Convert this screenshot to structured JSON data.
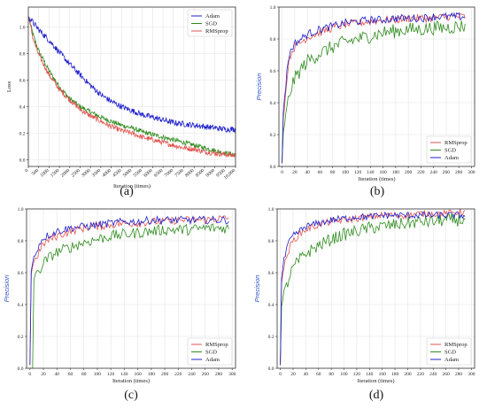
{
  "colors": {
    "Adam": "#1f1fcc",
    "SGD": "#2e8b1e",
    "RMSprop": "#e0534d"
  },
  "chart_data": [
    {
      "panel": "(a)",
      "type": "line",
      "xlabel": "Iteration (times)",
      "ylabel": "Loss",
      "xlim": [
        0,
        10000
      ],
      "ylim": [
        -0.05,
        1.15
      ],
      "xticks": [
        0,
        500,
        1000,
        1500,
        2000,
        2500,
        3000,
        3500,
        4000,
        4500,
        5000,
        5500,
        6000,
        6500,
        7000,
        7500,
        8000,
        8500,
        9000,
        9500,
        10000
      ],
      "xtick_labels": [
        "0",
        "500",
        "1000",
        "1500",
        "2000",
        "2500",
        "3000",
        "3500",
        "4000",
        "4500",
        "5000",
        "5500",
        "6000",
        "6500",
        "7000",
        "7500",
        "8000",
        "8500",
        "9000",
        "9500",
        "10,000"
      ],
      "yticks": [
        0,
        0.2,
        0.4,
        0.6,
        0.8,
        1.0
      ],
      "ytick_labels": [
        "0.0",
        "0.2",
        "0.4",
        "0.6",
        "0.8",
        "1.0"
      ],
      "grid": true,
      "legend_position": "top-right",
      "legend": [
        "Adam",
        "SGD",
        "RMSprop"
      ],
      "series": [
        {
          "name": "SGD",
          "noise": 0.018,
          "x": [
            0,
            250,
            500,
            1000,
            1500,
            2000,
            2500,
            3000,
            3500,
            4000,
            4500,
            5000,
            5500,
            6000,
            6500,
            7000,
            7500,
            8000,
            8500,
            9000,
            9500,
            10000
          ],
          "values": [
            1.08,
            0.93,
            0.82,
            0.67,
            0.55,
            0.46,
            0.4,
            0.36,
            0.32,
            0.29,
            0.26,
            0.24,
            0.21,
            0.19,
            0.17,
            0.15,
            0.13,
            0.11,
            0.09,
            0.07,
            0.05,
            0.04
          ]
        },
        {
          "name": "RMSprop",
          "noise": 0.02,
          "x": [
            0,
            250,
            500,
            1000,
            1500,
            2000,
            2500,
            3000,
            3500,
            4000,
            4500,
            5000,
            5500,
            6000,
            6500,
            7000,
            7500,
            8000,
            8500,
            9000,
            9500,
            10000
          ],
          "values": [
            1.08,
            0.9,
            0.79,
            0.64,
            0.53,
            0.45,
            0.38,
            0.33,
            0.29,
            0.25,
            0.22,
            0.2,
            0.17,
            0.15,
            0.13,
            0.11,
            0.09,
            0.08,
            0.06,
            0.05,
            0.04,
            0.03
          ]
        },
        {
          "name": "Adam",
          "noise": 0.022,
          "x": [
            0,
            250,
            500,
            1000,
            1500,
            2000,
            2500,
            3000,
            3500,
            4000,
            4500,
            5000,
            5500,
            6000,
            6500,
            7000,
            7500,
            8000,
            8500,
            9000,
            9500,
            10000
          ],
          "values": [
            1.08,
            1.03,
            0.98,
            0.9,
            0.81,
            0.72,
            0.64,
            0.56,
            0.49,
            0.44,
            0.4,
            0.37,
            0.34,
            0.32,
            0.3,
            0.28,
            0.27,
            0.26,
            0.25,
            0.24,
            0.23,
            0.23
          ]
        }
      ]
    },
    {
      "panel": "(b)",
      "type": "line",
      "xlabel": "Iteration (times)",
      "ylabel": "Precision",
      "xlim": [
        -5,
        305
      ],
      "ylim": [
        0,
        1.0
      ],
      "xticks": [
        0,
        20,
        40,
        60,
        80,
        100,
        120,
        140,
        160,
        180,
        200,
        220,
        240,
        260,
        280,
        300
      ],
      "xtick_labels": [
        "0",
        "20",
        "40",
        "60",
        "80",
        "100",
        "120",
        "140",
        "160",
        "180",
        "200",
        "220",
        "240",
        "260",
        "280",
        "300"
      ],
      "yticks": [
        0,
        0.2,
        0.4,
        0.6,
        0.8,
        1.0
      ],
      "ytick_labels": [
        "0.0",
        "0.2",
        "0.4",
        "0.6",
        "0.8",
        "1.0"
      ],
      "grid": true,
      "legend_position": "bottom-right",
      "legend": [
        "RMSprop",
        "SGD",
        "Adam"
      ],
      "series": [
        {
          "name": "RMSprop",
          "noise": 0.025,
          "x": [
            0,
            2,
            5,
            10,
            15,
            20,
            30,
            40,
            60,
            80,
            100,
            120,
            140,
            160,
            180,
            200,
            220,
            240,
            260,
            280,
            290
          ],
          "values": [
            0.02,
            0.3,
            0.42,
            0.65,
            0.72,
            0.75,
            0.78,
            0.81,
            0.84,
            0.87,
            0.89,
            0.9,
            0.91,
            0.92,
            0.92,
            0.93,
            0.93,
            0.93,
            0.94,
            0.94,
            0.94
          ]
        },
        {
          "name": "SGD",
          "noise": 0.045,
          "x": [
            0,
            2,
            5,
            10,
            15,
            20,
            30,
            40,
            60,
            80,
            100,
            120,
            140,
            160,
            180,
            200,
            220,
            240,
            260,
            280,
            290
          ],
          "values": [
            0.02,
            0.22,
            0.28,
            0.42,
            0.5,
            0.55,
            0.61,
            0.66,
            0.71,
            0.75,
            0.78,
            0.8,
            0.82,
            0.84,
            0.85,
            0.86,
            0.86,
            0.87,
            0.87,
            0.88,
            0.88
          ]
        },
        {
          "name": "Adam",
          "noise": 0.025,
          "x": [
            0,
            2,
            5,
            10,
            15,
            20,
            30,
            40,
            60,
            80,
            100,
            120,
            140,
            160,
            180,
            200,
            220,
            240,
            260,
            280,
            290
          ],
          "values": [
            0.02,
            0.35,
            0.48,
            0.68,
            0.74,
            0.77,
            0.8,
            0.83,
            0.86,
            0.88,
            0.9,
            0.91,
            0.92,
            0.92,
            0.93,
            0.93,
            0.93,
            0.94,
            0.94,
            0.94,
            0.94
          ]
        }
      ]
    },
    {
      "panel": "(c)",
      "type": "line",
      "xlabel": "Iteration (times)",
      "ylabel": "Precision",
      "xlim": [
        -5,
        305
      ],
      "ylim": [
        0,
        1.0
      ],
      "xticks": [
        0,
        20,
        40,
        60,
        80,
        100,
        120,
        140,
        160,
        180,
        200,
        220,
        240,
        260,
        280,
        300
      ],
      "xtick_labels": [
        "0",
        "20",
        "40",
        "60",
        "80",
        "100",
        "120",
        "140",
        "160",
        "180",
        "200",
        "220",
        "240",
        "260",
        "280",
        "300"
      ],
      "yticks": [
        0,
        0.2,
        0.4,
        0.6,
        0.8,
        1.0
      ],
      "ytick_labels": [
        "0.0",
        "0.2",
        "0.4",
        "0.6",
        "0.8",
        "1.0"
      ],
      "grid": true,
      "legend_position": "bottom-right",
      "legend": [
        "RMSprop",
        "SGD",
        "Adam"
      ],
      "series": [
        {
          "name": "RMSprop",
          "noise": 0.025,
          "x": [
            0,
            2,
            5,
            10,
            15,
            20,
            30,
            40,
            60,
            80,
            100,
            120,
            140,
            160,
            180,
            200,
            220,
            240,
            260,
            280,
            295
          ],
          "values": [
            0.02,
            0.6,
            0.66,
            0.7,
            0.74,
            0.78,
            0.81,
            0.83,
            0.86,
            0.88,
            0.89,
            0.9,
            0.91,
            0.91,
            0.92,
            0.92,
            0.93,
            0.93,
            0.93,
            0.94,
            0.94
          ]
        },
        {
          "name": "SGD",
          "noise": 0.035,
          "x": [
            0,
            2,
            4,
            6,
            10,
            15,
            20,
            30,
            40,
            60,
            80,
            100,
            120,
            140,
            160,
            180,
            200,
            220,
            240,
            260,
            280,
            295
          ],
          "values": [
            0.0,
            0.0,
            0.0,
            0.6,
            0.58,
            0.62,
            0.66,
            0.7,
            0.73,
            0.76,
            0.79,
            0.81,
            0.83,
            0.84,
            0.85,
            0.86,
            0.87,
            0.87,
            0.87,
            0.88,
            0.88,
            0.88
          ]
        },
        {
          "name": "Adam",
          "noise": 0.025,
          "x": [
            0,
            2,
            5,
            10,
            15,
            20,
            30,
            40,
            60,
            80,
            100,
            120,
            140,
            160,
            180,
            200,
            220,
            240,
            260,
            280,
            295
          ],
          "values": [
            0.02,
            0.62,
            0.68,
            0.74,
            0.79,
            0.82,
            0.84,
            0.86,
            0.88,
            0.89,
            0.9,
            0.91,
            0.92,
            0.92,
            0.93,
            0.93,
            0.93,
            0.93,
            0.93,
            0.93,
            0.93
          ]
        }
      ]
    },
    {
      "panel": "(d)",
      "type": "line",
      "xlabel": "Iteration (times)",
      "ylabel": "Precision",
      "xlim": [
        -5,
        305
      ],
      "ylim": [
        0,
        1.0
      ],
      "xticks": [
        0,
        20,
        40,
        60,
        80,
        100,
        120,
        140,
        160,
        180,
        200,
        220,
        240,
        260,
        280,
        300
      ],
      "xtick_labels": [
        "0",
        "20",
        "40",
        "60",
        "80",
        "100",
        "120",
        "140",
        "160",
        "180",
        "200",
        "220",
        "240",
        "260",
        "280",
        "300"
      ],
      "yticks": [
        0,
        0.2,
        0.4,
        0.6,
        0.8,
        1.0
      ],
      "ytick_labels": [
        "0.0",
        "0.2",
        "0.4",
        "0.6",
        "0.8",
        "1.0"
      ],
      "grid": true,
      "legend_position": "bottom-right",
      "legend": [
        "RMSprop",
        "SGD",
        "Adam"
      ],
      "series": [
        {
          "name": "RMSprop",
          "noise": 0.022,
          "x": [
            0,
            2,
            5,
            10,
            15,
            20,
            30,
            40,
            60,
            80,
            100,
            120,
            140,
            160,
            180,
            200,
            220,
            240,
            260,
            280,
            290
          ],
          "values": [
            0.02,
            0.55,
            0.62,
            0.7,
            0.76,
            0.8,
            0.84,
            0.87,
            0.9,
            0.92,
            0.93,
            0.94,
            0.95,
            0.96,
            0.96,
            0.96,
            0.97,
            0.97,
            0.97,
            0.98,
            0.98
          ]
        },
        {
          "name": "SGD",
          "noise": 0.04,
          "x": [
            0,
            2,
            5,
            10,
            15,
            20,
            30,
            40,
            60,
            80,
            100,
            120,
            140,
            160,
            180,
            200,
            220,
            240,
            260,
            280,
            290
          ],
          "values": [
            0.02,
            0.4,
            0.45,
            0.52,
            0.58,
            0.63,
            0.68,
            0.72,
            0.77,
            0.81,
            0.84,
            0.86,
            0.88,
            0.89,
            0.9,
            0.91,
            0.92,
            0.92,
            0.93,
            0.93,
            0.93
          ]
        },
        {
          "name": "Adam",
          "noise": 0.022,
          "x": [
            0,
            2,
            5,
            10,
            15,
            20,
            30,
            40,
            60,
            80,
            100,
            120,
            140,
            160,
            180,
            200,
            220,
            240,
            260,
            280,
            290
          ],
          "values": [
            0.02,
            0.58,
            0.66,
            0.75,
            0.8,
            0.83,
            0.86,
            0.89,
            0.91,
            0.93,
            0.94,
            0.95,
            0.95,
            0.96,
            0.96,
            0.96,
            0.96,
            0.96,
            0.96,
            0.96,
            0.96
          ]
        }
      ]
    }
  ]
}
